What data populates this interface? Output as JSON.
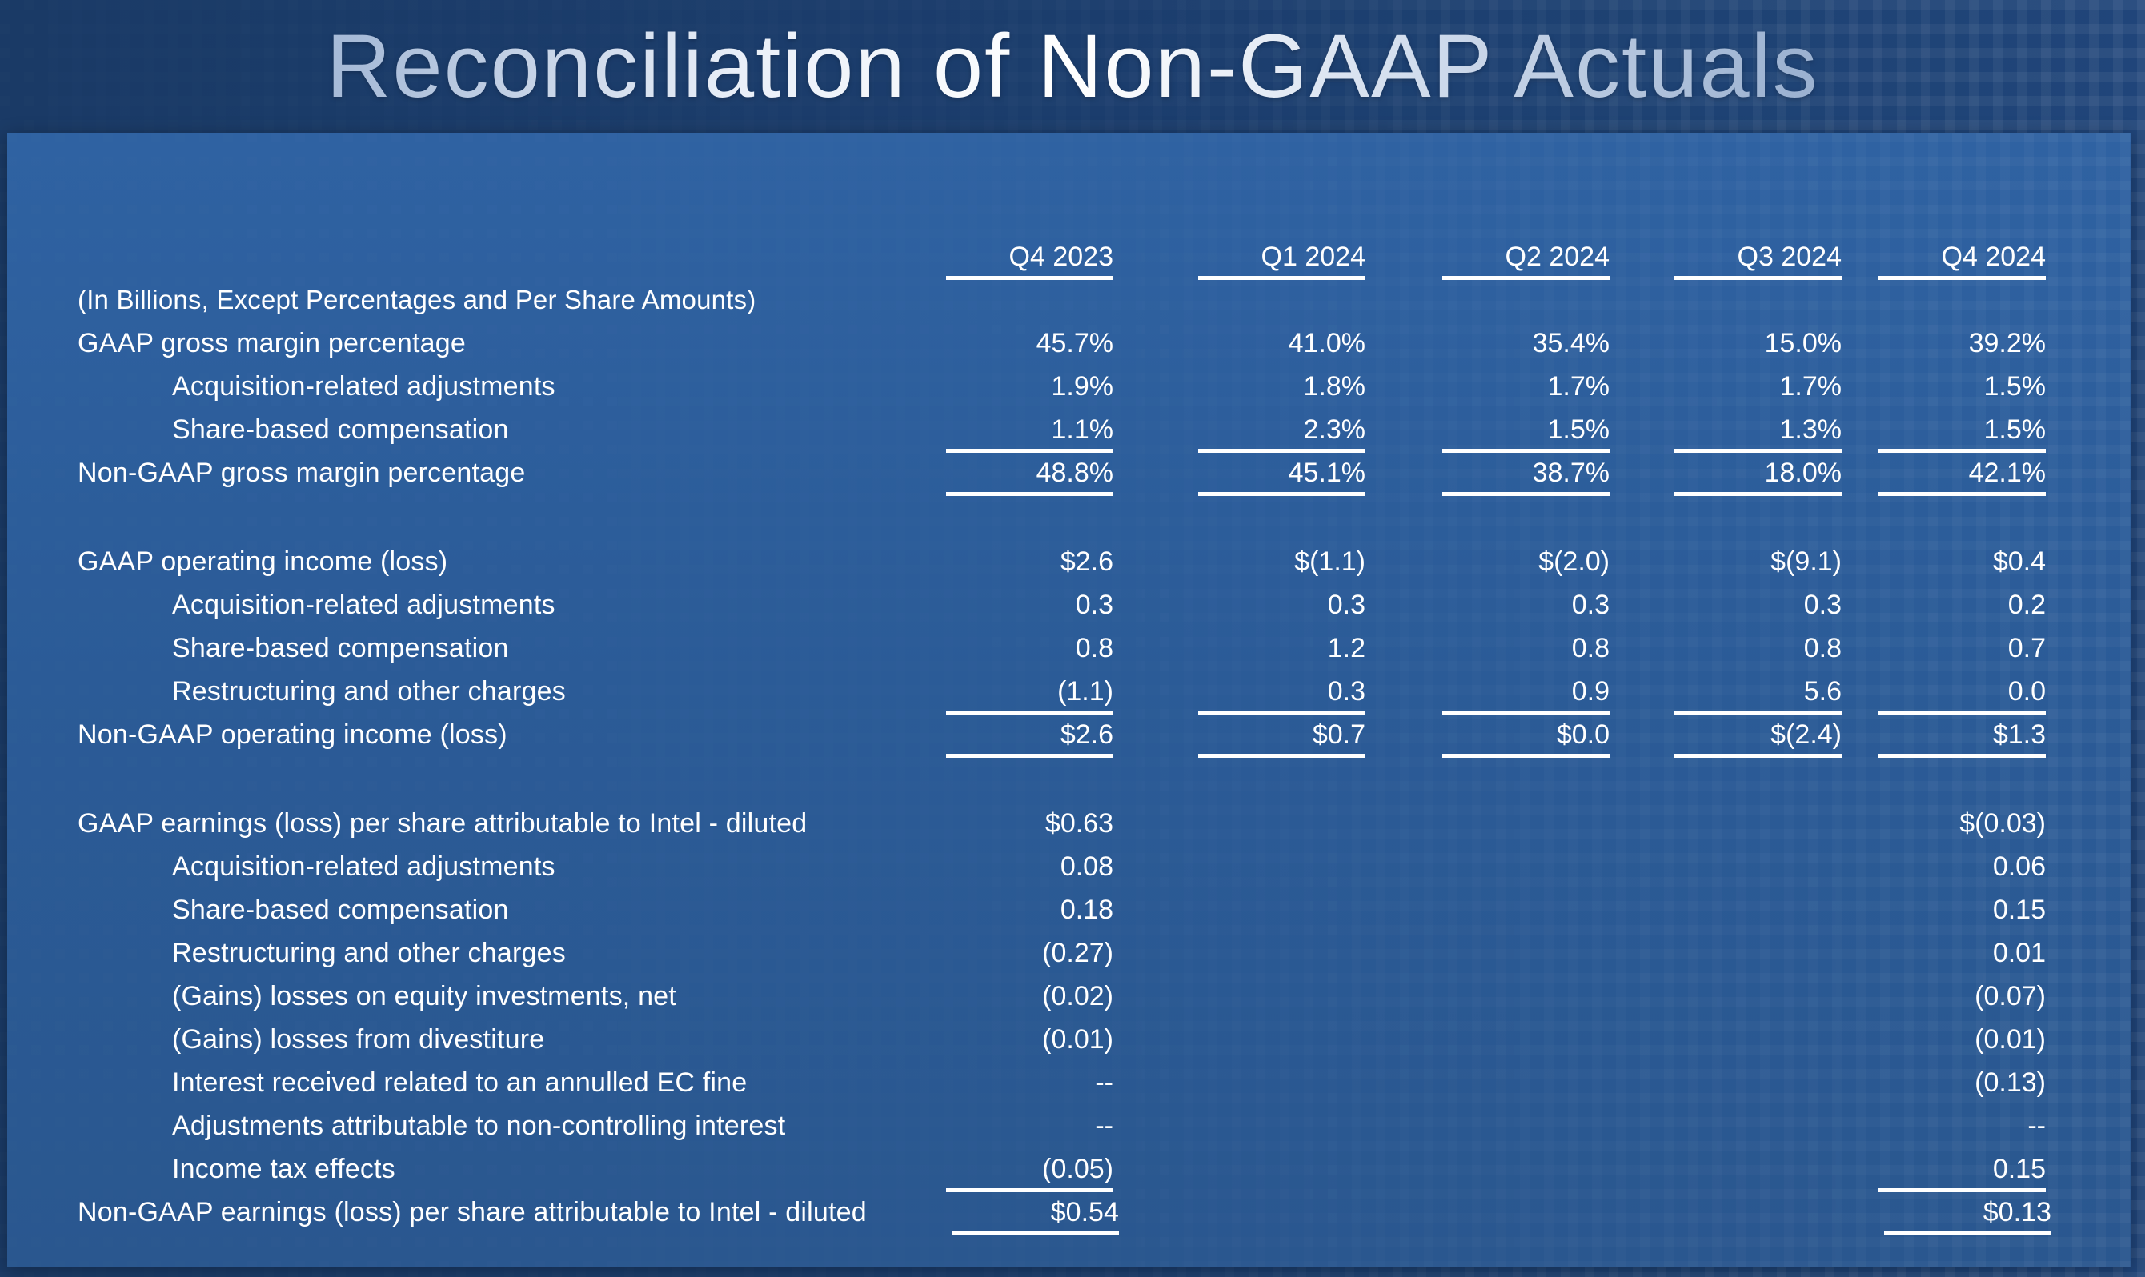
{
  "title": "Reconciliation of Non-GAAP Actuals",
  "colors": {
    "background_dark_blue": "#1b3d6d",
    "panel_blue": "#2b5b97",
    "text_white": "#ffffff",
    "title_light_blue": "#a7bbd8"
  },
  "table": {
    "unit_note": "(In Billions, Except Percentages and Per Share Amounts)",
    "columns": [
      "Q4 2023",
      "Q1 2024",
      "Q2 2024",
      "Q3 2024",
      "Q4 2024"
    ],
    "sections": [
      {
        "name": "gross-margin",
        "rows": [
          {
            "label": "GAAP gross margin percentage",
            "indent": false,
            "rule_below": false,
            "values": [
              "45.7%",
              "41.0%",
              "35.4%",
              "15.0%",
              "39.2%"
            ]
          },
          {
            "label": "Acquisition-related adjustments",
            "indent": true,
            "rule_below": false,
            "values": [
              "1.9%",
              "1.8%",
              "1.7%",
              "1.7%",
              "1.5%"
            ]
          },
          {
            "label": "Share-based compensation",
            "indent": true,
            "rule_below": true,
            "values": [
              "1.1%",
              "2.3%",
              "1.5%",
              "1.3%",
              "1.5%"
            ]
          },
          {
            "label": "Non-GAAP gross margin percentage",
            "indent": false,
            "rule_below": true,
            "values": [
              "48.8%",
              "45.1%",
              "38.7%",
              "18.0%",
              "42.1%"
            ]
          }
        ]
      },
      {
        "name": "operating-income",
        "rows": [
          {
            "label": "GAAP operating income (loss)",
            "indent": false,
            "rule_below": false,
            "values": [
              "$2.6",
              "$(1.1)",
              "$(2.0)",
              "$(9.1)",
              "$0.4"
            ]
          },
          {
            "label": "Acquisition-related adjustments",
            "indent": true,
            "rule_below": false,
            "values": [
              "0.3",
              "0.3",
              "0.3",
              "0.3",
              "0.2"
            ]
          },
          {
            "label": "Share-based compensation",
            "indent": true,
            "rule_below": false,
            "values": [
              "0.8",
              "1.2",
              "0.8",
              "0.8",
              "0.7"
            ]
          },
          {
            "label": "Restructuring and other charges",
            "indent": true,
            "rule_below": true,
            "values": [
              "(1.1)",
              "0.3",
              "0.9",
              "5.6",
              "0.0"
            ]
          },
          {
            "label": "Non-GAAP operating income (loss)",
            "indent": false,
            "rule_below": true,
            "values": [
              "$2.6",
              "$0.7",
              "$0.0",
              "$(2.4)",
              "$1.3"
            ]
          }
        ]
      },
      {
        "name": "earnings-per-share",
        "rows": [
          {
            "label": "GAAP earnings (loss) per share attributable to Intel - diluted",
            "indent": false,
            "rule_below": false,
            "values": [
              "$0.63",
              "",
              "",
              "",
              "$(0.03)"
            ]
          },
          {
            "label": "Acquisition-related adjustments",
            "indent": true,
            "rule_below": false,
            "values": [
              "0.08",
              "",
              "",
              "",
              "0.06"
            ]
          },
          {
            "label": "Share-based compensation",
            "indent": true,
            "rule_below": false,
            "values": [
              "0.18",
              "",
              "",
              "",
              "0.15"
            ]
          },
          {
            "label": "Restructuring and other charges",
            "indent": true,
            "rule_below": false,
            "values": [
              "(0.27)",
              "",
              "",
              "",
              "0.01"
            ]
          },
          {
            "label": "(Gains) losses on equity investments, net",
            "indent": true,
            "rule_below": false,
            "values": [
              "(0.02)",
              "",
              "",
              "",
              "(0.07)"
            ]
          },
          {
            "label": "(Gains) losses from divestiture",
            "indent": true,
            "rule_below": false,
            "values": [
              "(0.01)",
              "",
              "",
              "",
              "(0.01)"
            ]
          },
          {
            "label": "Interest received related to an annulled EC fine",
            "indent": true,
            "rule_below": false,
            "values": [
              "--",
              "",
              "",
              "",
              "(0.13)"
            ]
          },
          {
            "label": "Adjustments attributable to non-controlling interest",
            "indent": true,
            "rule_below": false,
            "values": [
              "--",
              "",
              "",
              "",
              "--"
            ]
          },
          {
            "label": "Income tax effects",
            "indent": true,
            "rule_below": true,
            "values": [
              "(0.05)",
              "",
              "",
              "",
              "0.15"
            ]
          },
          {
            "label": "Non-GAAP earnings (loss) per share attributable to Intel - diluted",
            "indent": false,
            "rule_below": true,
            "values": [
              "$0.54",
              "",
              "",
              "",
              "$0.13"
            ]
          }
        ]
      }
    ]
  }
}
